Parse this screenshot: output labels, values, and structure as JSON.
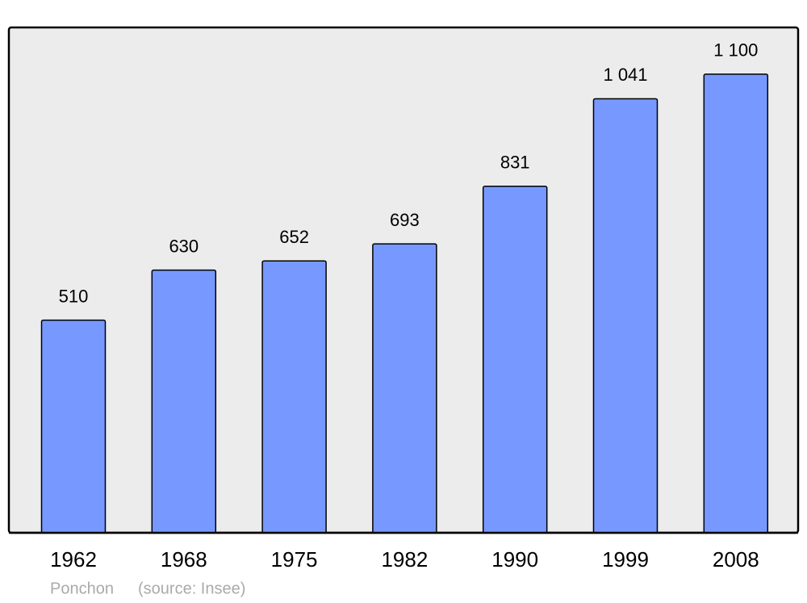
{
  "chart_data": {
    "type": "bar",
    "categories": [
      "1962",
      "1968",
      "1975",
      "1982",
      "1990",
      "1999",
      "2008"
    ],
    "values": [
      510,
      630,
      652,
      693,
      831,
      1041,
      1100
    ],
    "value_labels": [
      "510",
      "630",
      "652",
      "693",
      "831",
      "1 041",
      "1 100"
    ],
    "color": "#7799ff",
    "ylim": [
      0,
      1212
    ],
    "credits": [
      "Ponchon",
      "(source: Insee)"
    ]
  }
}
